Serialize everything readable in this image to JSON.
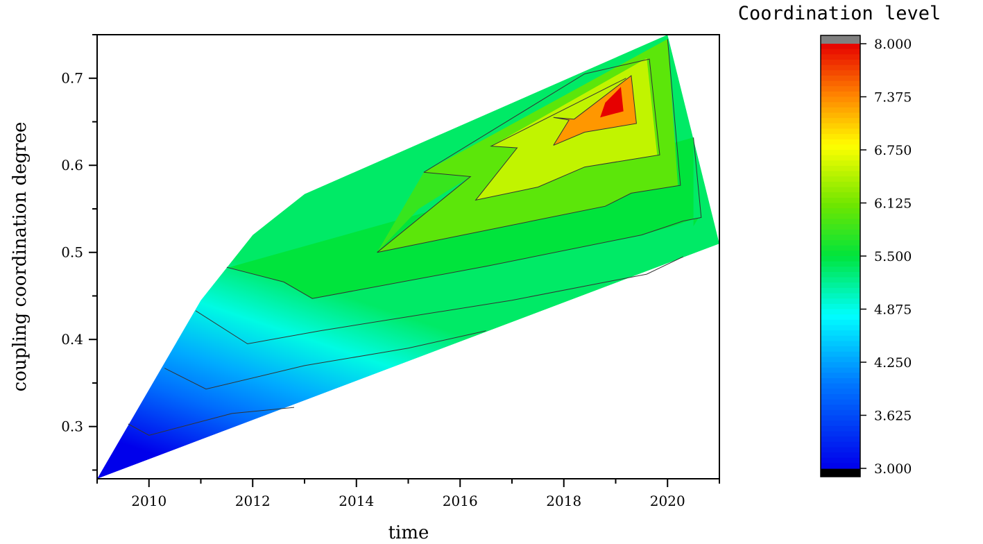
{
  "chart_data": {
    "type": "contour",
    "xlabel": "time",
    "ylabel": "coupling coordination degree",
    "colorbar_title": "Coordination level",
    "x_ticks": [
      "2010",
      "2012",
      "2014",
      "2016",
      "2018",
      "2020"
    ],
    "y_ticks": [
      "0.3",
      "0.4",
      "0.5",
      "0.6",
      "0.7"
    ],
    "xlim": [
      2009,
      2021
    ],
    "ylim": [
      0.24,
      0.75
    ],
    "colorbar": {
      "min": 3.0,
      "max": 8.0,
      "tick_labels": [
        "8.000",
        "7.375",
        "6.750",
        "6.125",
        "5.500",
        "4.875",
        "4.250",
        "3.625",
        "3.000"
      ],
      "tick_values": [
        8.0,
        7.375,
        6.75,
        6.125,
        5.5,
        4.875,
        4.25,
        3.625,
        3.0
      ],
      "over_color": "#808080",
      "under_color": "#000000"
    },
    "outline": [
      [
        2009.0,
        0.24
      ],
      [
        2011.0,
        0.445
      ],
      [
        2012.0,
        0.52
      ],
      [
        2013.0,
        0.567
      ],
      [
        2020.0,
        0.75
      ],
      [
        2021.0,
        0.51
      ],
      [
        2009.0,
        0.24
      ]
    ],
    "levels": [
      {
        "value": 4.9,
        "points": [
          [
            2009.0,
            0.24
          ],
          [
            2011.0,
            0.445
          ],
          [
            2012.0,
            0.52
          ],
          [
            2013.0,
            0.567
          ],
          [
            2020.0,
            0.75
          ],
          [
            2021.0,
            0.51
          ],
          [
            2009.0,
            0.24
          ]
        ]
      },
      {
        "value": 5.5,
        "points": [
          [
            2011.55,
            0.483
          ],
          [
            2012.6,
            0.466
          ],
          [
            2013.15,
            0.447
          ],
          [
            2016.5,
            0.484
          ],
          [
            2019.5,
            0.52
          ],
          [
            2020.1,
            0.53
          ],
          [
            2020.4,
            0.536
          ],
          [
            2020.6,
            0.54
          ],
          [
            2020.5,
            0.53
          ],
          [
            2020.5,
            0.632
          ]
        ]
      },
      {
        "value": 5.8,
        "points": [
          [
            2014.4,
            0.5
          ],
          [
            2015.3,
            0.592
          ],
          [
            2016.2,
            0.587
          ],
          [
            2015.2,
            0.55
          ],
          [
            2014.4,
            0.5
          ]
        ]
      },
      {
        "value": 6.0,
        "points": [
          [
            2014.4,
            0.5
          ],
          [
            2018.8,
            0.553
          ],
          [
            2019.3,
            0.568
          ],
          [
            2020.2,
            0.577
          ],
          [
            2020.0,
            0.745
          ],
          [
            2015.3,
            0.592
          ],
          [
            2016.2,
            0.587
          ],
          [
            2014.4,
            0.5
          ]
        ]
      },
      {
        "value": 6.5,
        "points": [
          [
            2016.3,
            0.56
          ],
          [
            2017.5,
            0.575
          ],
          [
            2018.4,
            0.598
          ],
          [
            2019.8,
            0.612
          ],
          [
            2019.6,
            0.723
          ],
          [
            2016.6,
            0.622
          ],
          [
            2017.1,
            0.62
          ],
          [
            2016.3,
            0.56
          ]
        ]
      },
      {
        "value": 7.3,
        "points": [
          [
            2017.8,
            0.623
          ],
          [
            2018.4,
            0.638
          ],
          [
            2019.4,
            0.648
          ],
          [
            2019.3,
            0.703
          ],
          [
            2018.2,
            0.653
          ],
          [
            2017.8,
            0.655
          ],
          [
            2018.1,
            0.652
          ],
          [
            2017.8,
            0.623
          ]
        ]
      },
      {
        "value": 8.0,
        "points": [
          [
            2018.7,
            0.655
          ],
          [
            2019.15,
            0.662
          ],
          [
            2019.1,
            0.69
          ],
          [
            2018.8,
            0.672
          ],
          [
            2018.7,
            0.655
          ]
        ]
      }
    ],
    "contour_lines": [
      [
        [
          2009.6,
          0.303
        ],
        [
          2010.0,
          0.29
        ],
        [
          2011.6,
          0.315
        ],
        [
          2012.8,
          0.322
        ]
      ],
      [
        [
          2010.3,
          0.367
        ],
        [
          2011.1,
          0.343
        ],
        [
          2013.0,
          0.37
        ],
        [
          2015.0,
          0.39
        ],
        [
          2016.5,
          0.41
        ]
      ],
      [
        [
          2010.9,
          0.433
        ],
        [
          2011.9,
          0.395
        ],
        [
          2013.3,
          0.41
        ],
        [
          2017.0,
          0.445
        ],
        [
          2019.6,
          0.475
        ],
        [
          2020.3,
          0.495
        ]
      ],
      [
        [
          2011.5,
          0.483
        ],
        [
          2012.6,
          0.466
        ],
        [
          2013.15,
          0.447
        ],
        [
          2016.5,
          0.484
        ],
        [
          2019.5,
          0.52
        ],
        [
          2020.0,
          0.53
        ],
        [
          2020.3,
          0.536
        ],
        [
          2020.65,
          0.54
        ],
        [
          2020.5,
          0.632
        ]
      ],
      [
        [
          2014.4,
          0.5
        ],
        [
          2018.8,
          0.553
        ],
        [
          2019.3,
          0.568
        ],
        [
          2020.25,
          0.577
        ],
        [
          2020.0,
          0.745
        ]
      ],
      [
        [
          2015.3,
          0.592
        ],
        [
          2016.2,
          0.587
        ],
        [
          2014.4,
          0.5
        ]
      ],
      [
        [
          2015.3,
          0.592
        ],
        [
          2018.4,
          0.705
        ],
        [
          2019.65,
          0.722
        ],
        [
          2019.85,
          0.612
        ],
        [
          2018.4,
          0.598
        ],
        [
          2017.5,
          0.575
        ],
        [
          2016.3,
          0.56
        ],
        [
          2017.1,
          0.62
        ],
        [
          2016.6,
          0.622
        ],
        [
          2019.2,
          0.7
        ]
      ],
      [
        [
          2017.8,
          0.623
        ],
        [
          2018.4,
          0.638
        ],
        [
          2019.4,
          0.648
        ],
        [
          2019.3,
          0.703
        ],
        [
          2018.2,
          0.653
        ],
        [
          2017.8,
          0.655
        ],
        [
          2018.1,
          0.652
        ],
        [
          2017.8,
          0.623
        ]
      ]
    ]
  }
}
